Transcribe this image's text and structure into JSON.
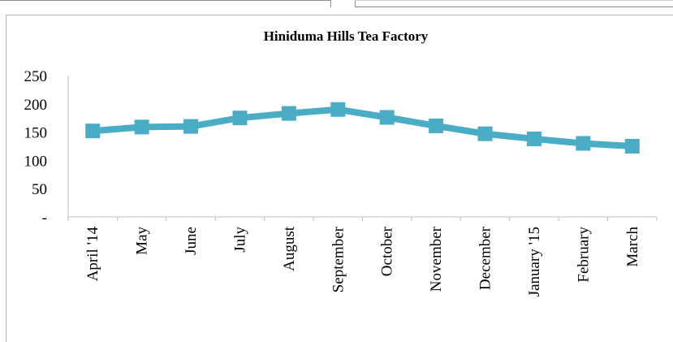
{
  "chart_data": {
    "type": "line",
    "title": "Hiniduma Hills Tea Factory",
    "xlabel": "",
    "ylabel": "",
    "categories": [
      "April '14",
      "May",
      "June",
      "July",
      "August",
      "September",
      "October",
      "November",
      "December",
      "January '15",
      "February",
      "March"
    ],
    "series": [
      {
        "values": [
          152,
          159,
          160,
          175,
          183,
          190,
          176,
          161,
          147,
          138,
          130,
          125
        ],
        "color": "#4bacc6",
        "marker": "square"
      }
    ],
    "ylim": [
      0,
      250
    ],
    "yticks": [
      0,
      50,
      100,
      150,
      200,
      250
    ],
    "ytick_labels": [
      "-",
      "50",
      "100",
      "150",
      "200",
      "250"
    ],
    "grid": false,
    "legend": "none"
  }
}
